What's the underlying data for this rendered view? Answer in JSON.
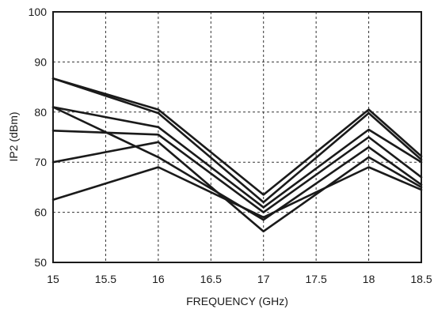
{
  "chart_data": {
    "type": "line",
    "title": "",
    "xlabel": "FREQUENCY (GHz)",
    "ylabel": "IP2  (dBm)",
    "xlim": [
      15,
      18.5
    ],
    "ylim": [
      50,
      100
    ],
    "xticks": [
      "15",
      "15.5",
      "16",
      "16.5",
      "17",
      "17.5",
      "18",
      "18.5"
    ],
    "yticks": [
      "50",
      "60",
      "70",
      "80",
      "90",
      "100"
    ],
    "grid": true,
    "x": [
      15,
      16,
      17,
      18,
      18.5
    ],
    "series": [
      {
        "values": [
          86.7,
          80.5,
          63.5,
          80.5,
          71.2
        ]
      },
      {
        "values": [
          86.7,
          79.8,
          62.0,
          79.8,
          70.5
        ]
      },
      {
        "values": [
          81.0,
          77.0,
          61.0,
          76.5,
          70.0
        ]
      },
      {
        "values": [
          76.3,
          75.5,
          60.0,
          75.0,
          67.0
        ]
      },
      {
        "values": [
          81.0,
          71.0,
          58.5,
          73.0,
          65.5
        ]
      },
      {
        "values": [
          70.0,
          74.0,
          56.2,
          71.0,
          65.0
        ]
      },
      {
        "values": [
          62.5,
          69.0,
          59.0,
          69.0,
          64.5
        ]
      }
    ],
    "color": "#1a1a1a"
  }
}
